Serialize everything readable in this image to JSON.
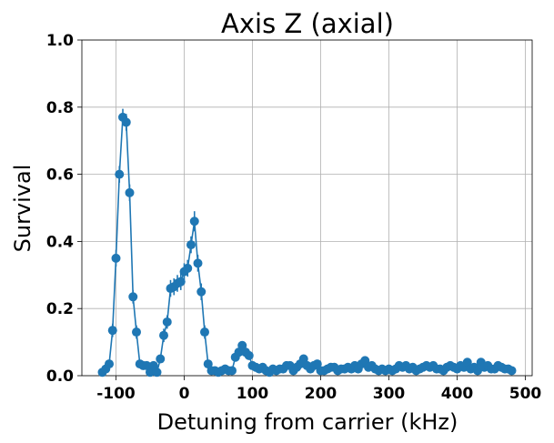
{
  "chart_data": {
    "type": "line",
    "title": "Axis Z (axial)",
    "xlabel": "Detuning from carrier (kHz)",
    "ylabel": "Survival",
    "color": "#1f77b4",
    "grid": true,
    "xlim": [
      -150,
      510
    ],
    "xticks": [
      -100,
      0,
      100,
      200,
      300,
      400,
      500
    ],
    "ylim": [
      0,
      1
    ],
    "yticks": [
      {
        "value": 0,
        "label": "0.0"
      },
      0.2,
      0.4,
      0.6,
      0.8,
      {
        "value": 1,
        "label": "1.0"
      }
    ],
    "x": [
      -120,
      -115,
      -110,
      -105,
      -100,
      -95,
      -90,
      -85,
      -80,
      -75,
      -70,
      -65,
      -60,
      -55,
      -50,
      -45,
      -40,
      -35,
      -30,
      -25,
      -20,
      -15,
      -10,
      -5,
      0,
      5,
      10,
      15,
      20,
      25,
      30,
      35,
      40,
      45,
      50,
      55,
      60,
      65,
      70,
      75,
      80,
      85,
      90,
      95,
      100,
      105,
      110,
      115,
      120,
      125,
      130,
      135,
      140,
      145,
      150,
      155,
      160,
      165,
      170,
      175,
      180,
      185,
      190,
      195,
      200,
      205,
      210,
      215,
      220,
      225,
      230,
      235,
      240,
      245,
      250,
      255,
      260,
      265,
      270,
      275,
      280,
      285,
      290,
      295,
      300,
      305,
      310,
      315,
      320,
      325,
      330,
      335,
      340,
      345,
      350,
      355,
      360,
      365,
      370,
      375,
      380,
      385,
      390,
      395,
      400,
      405,
      410,
      415,
      420,
      425,
      430,
      435,
      440,
      445,
      450,
      455,
      460,
      465,
      470,
      475,
      480
    ],
    "values": [
      0.01,
      0.02,
      0.035,
      0.135,
      0.35,
      0.6,
      0.77,
      0.755,
      0.545,
      0.235,
      0.13,
      0.035,
      0.03,
      0.03,
      0.01,
      0.03,
      0.01,
      0.05,
      0.12,
      0.16,
      0.26,
      0.265,
      0.275,
      0.28,
      0.31,
      0.32,
      0.39,
      0.46,
      0.335,
      0.25,
      0.13,
      0.035,
      0.015,
      0.015,
      0.01,
      0.015,
      0.02,
      0.015,
      0.015,
      0.055,
      0.07,
      0.09,
      0.07,
      0.06,
      0.03,
      0.025,
      0.02,
      0.025,
      0.015,
      0.01,
      0.02,
      0.015,
      0.02,
      0.02,
      0.03,
      0.03,
      0.015,
      0.025,
      0.035,
      0.05,
      0.03,
      0.02,
      0.03,
      0.035,
      0.015,
      0.015,
      0.02,
      0.025,
      0.025,
      0.015,
      0.02,
      0.02,
      0.025,
      0.02,
      0.03,
      0.02,
      0.035,
      0.045,
      0.025,
      0.03,
      0.02,
      0.015,
      0.02,
      0.015,
      0.02,
      0.015,
      0.02,
      0.03,
      0.025,
      0.03,
      0.02,
      0.025,
      0.015,
      0.02,
      0.025,
      0.03,
      0.025,
      0.03,
      0.02,
      0.02,
      0.015,
      0.025,
      0.03,
      0.025,
      0.02,
      0.03,
      0.025,
      0.04,
      0.02,
      0.025,
      0.015,
      0.04,
      0.025,
      0.03,
      0.02,
      0.02,
      0.03,
      0.025,
      0.02,
      0.02,
      0.015
    ],
    "errors": [
      0.01,
      0.01,
      0.01,
      0.02,
      0.025,
      0.025,
      0.025,
      0.025,
      0.025,
      0.02,
      0.02,
      0.01,
      0.01,
      0.01,
      0.01,
      0.01,
      0.01,
      0.01,
      0.02,
      0.02,
      0.025,
      0.025,
      0.025,
      0.025,
      0.025,
      0.025,
      0.025,
      0.03,
      0.025,
      0.025,
      0.02,
      0.01,
      0.01,
      0.01,
      0.01,
      0.01,
      0.01,
      0.01,
      0.01,
      0.01,
      0.01,
      0.01,
      0.01,
      0.01,
      0.01,
      0.01,
      0.01,
      0.01,
      0.01,
      0.01,
      0.01,
      0.01,
      0.01,
      0.01,
      0.01,
      0.01,
      0.01,
      0.01,
      0.01,
      0.01,
      0.01,
      0.01,
      0.01,
      0.01,
      0.01,
      0.01,
      0.01,
      0.01,
      0.01,
      0.01,
      0.01,
      0.01,
      0.01,
      0.01,
      0.01,
      0.01,
      0.01,
      0.01,
      0.01,
      0.01,
      0.01,
      0.01,
      0.01,
      0.01,
      0.01,
      0.01,
      0.01,
      0.01,
      0.01,
      0.01,
      0.01,
      0.01,
      0.01,
      0.01,
      0.01,
      0.01,
      0.01,
      0.01,
      0.01,
      0.01,
      0.01,
      0.01,
      0.01,
      0.01,
      0.01,
      0.01,
      0.01,
      0.01,
      0.01,
      0.01,
      0.01,
      0.01,
      0.01,
      0.01,
      0.01,
      0.01,
      0.01,
      0.01,
      0.01,
      0.01,
      0.01
    ]
  }
}
